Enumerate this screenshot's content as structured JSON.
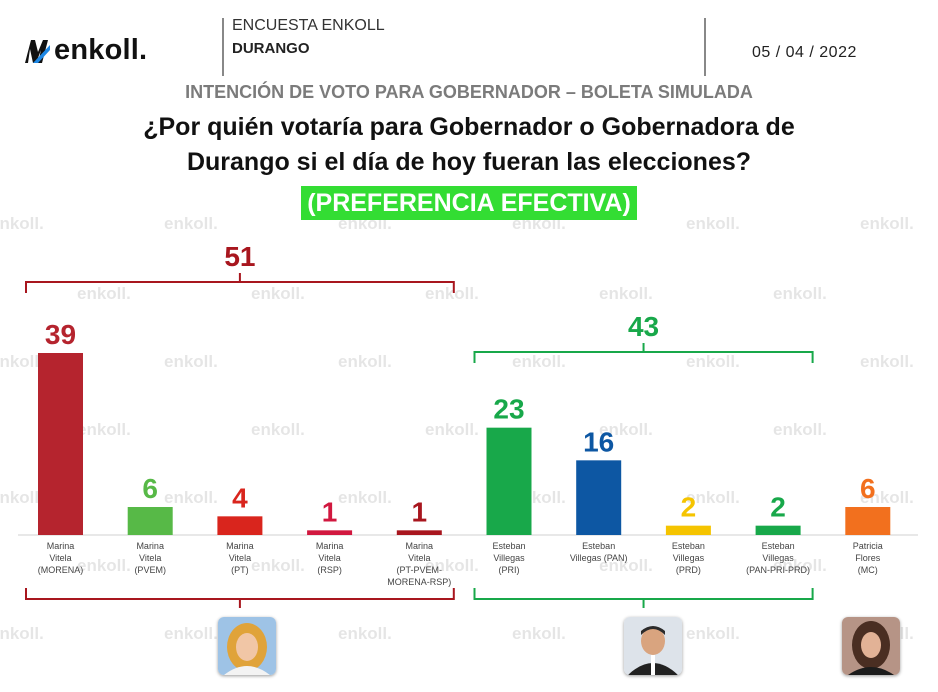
{
  "header": {
    "brand": "enkoll.",
    "survey_name": "ENCUESTA ENKOLL",
    "state": "DURANGO",
    "date": "05 / 04 / 2022"
  },
  "subtitle": "INTENCIÓN DE VOTO PARA GOBERNADOR – BOLETA SIMULADA",
  "question_line1": "¿Por quién votaría para Gobernador o Gobernadora de",
  "question_line2": "Durango si el día de hoy fueran las elecciones?",
  "highlight": "(PREFERENCIA EFECTIVA)",
  "watermark": "enkoll.",
  "colors": {
    "morena": "#b5242e",
    "pvem": "#57b947",
    "pt": "#d9251d",
    "rsp": "#d1183f",
    "coalition_red": "#a8161e",
    "pri": "#18a84a",
    "pan": "#0d57a3",
    "prd": "#f5c400",
    "alliance_green": "#18a84a",
    "mc": "#f2701e",
    "highlight_bg": "#33dd33"
  },
  "photos": [
    {
      "name": "marina-vitela-photo"
    },
    {
      "name": "esteban-villegas-photo"
    },
    {
      "name": "patricia-flores-photo"
    }
  ],
  "chart_data": {
    "type": "bar",
    "title": "¿Por quién votaría para Gobernador o Gobernadora de Durango si el día de hoy fueran las elecciones? (PREFERENCIA EFECTIVA)",
    "categories": [
      [
        "Marina",
        "Vitela",
        "(MORENA)"
      ],
      [
        "Marina",
        "Vitela",
        "(PVEM)"
      ],
      [
        "Marina",
        "Vitela",
        "(PT)"
      ],
      [
        "Marina",
        "Vitela",
        "(RSP)"
      ],
      [
        "Marina",
        "Vitela",
        "(PT-PVEM-",
        "MORENA-RSP)"
      ],
      [
        "Esteban",
        "Villegas",
        "(PRI)"
      ],
      [
        "Esteban",
        "Villegas (PAN)"
      ],
      [
        "Esteban",
        "Villegas",
        "(PRD)"
      ],
      [
        "Esteban",
        "Villegas",
        "(PAN-PRI-PRD)"
      ],
      [
        "Patricia",
        "Flores",
        "(MC)"
      ]
    ],
    "values": [
      39,
      6,
      4,
      1,
      1,
      23,
      16,
      2,
      2,
      6
    ],
    "bar_colors": [
      "#b5242e",
      "#57b947",
      "#d9251d",
      "#d1183f",
      "#a8161e",
      "#18a84a",
      "#0d57a3",
      "#f5c400",
      "#18a84a",
      "#f2701e"
    ],
    "label_colors": [
      "#b5242e",
      "#57b947",
      "#d9251d",
      "#d1183f",
      "#a8161e",
      "#18a84a",
      "#0d57a3",
      "#f5c400",
      "#18a84a",
      "#f2701e"
    ],
    "groups": [
      {
        "name": "Marina Vitela",
        "total": 51,
        "first": 0,
        "last": 4,
        "color": "#a8161e"
      },
      {
        "name": "Esteban Villegas",
        "total": 43,
        "first": 5,
        "last": 8,
        "color": "#18a84a"
      }
    ],
    "ylim": [
      0,
      39
    ],
    "xlabel": "",
    "ylabel": ""
  }
}
